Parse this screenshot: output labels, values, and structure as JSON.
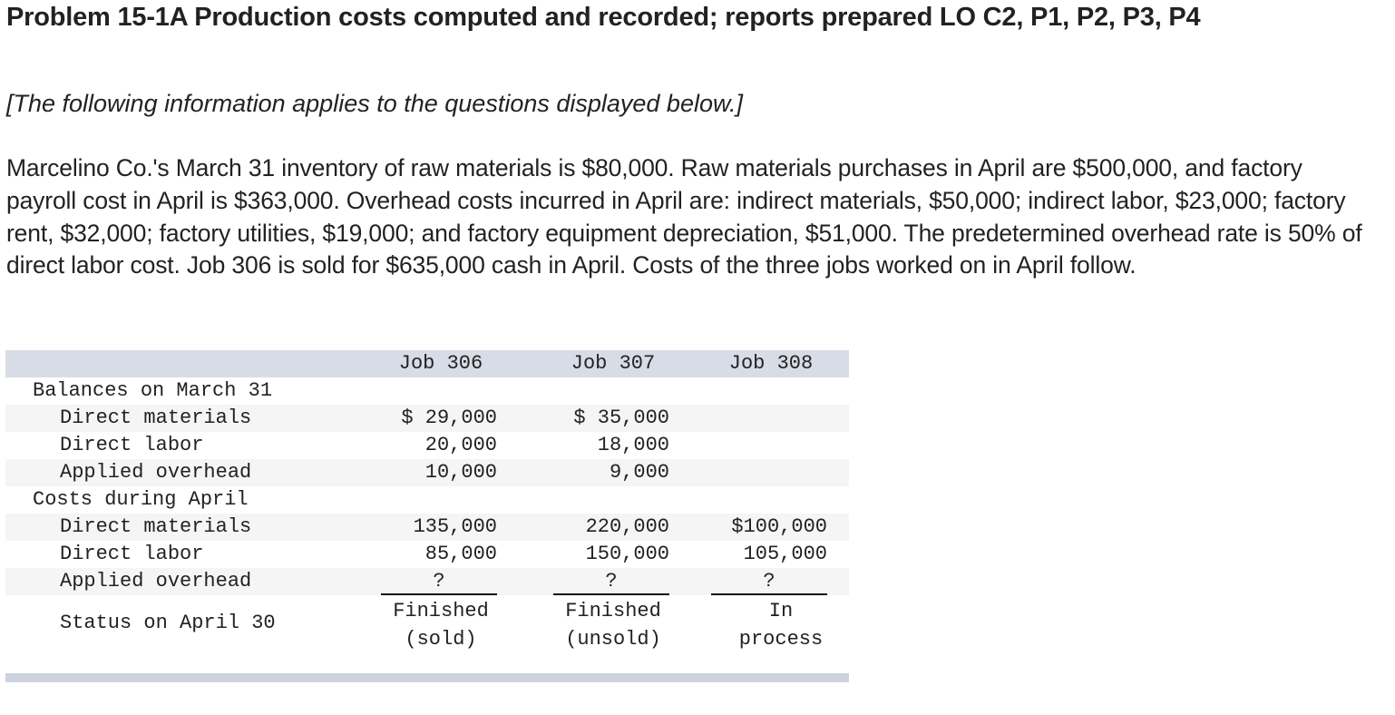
{
  "header": {
    "title": "Problem 15-1A Production costs computed and recorded; reports prepared LO C2, P1, P2, P3, P4",
    "intro": "[The following information applies to the questions displayed below.]"
  },
  "problem": {
    "paragraph": "Marcelino Co.'s March 31 inventory of raw materials is $80,000. Raw materials purchases in April are $500,000, and factory payroll cost in April is $363,000. Overhead costs incurred in April are: indirect materials, $50,000; indirect labor, $23,000; factory rent, $32,000; factory utilities, $19,000; and factory equipment depreciation, $51,000. The predetermined overhead rate is 50% of direct labor cost. Job 306 is sold for $635,000 cash in April. Costs of the three jobs worked on in April follow."
  },
  "table": {
    "columns": [
      "Job 306",
      "Job 307",
      "Job 308"
    ],
    "sections": [
      {
        "label": "Balances on March 31",
        "rows": [
          {
            "label": "Direct materials",
            "values": [
              "$ 29,000",
              "$ 35,000",
              ""
            ]
          },
          {
            "label": "Direct labor",
            "values": [
              "20,000",
              "18,000",
              ""
            ]
          },
          {
            "label": "Applied overhead",
            "values": [
              "10,000",
              "9,000",
              ""
            ]
          }
        ]
      },
      {
        "label": "Costs during April",
        "rows": [
          {
            "label": "Direct materials",
            "values": [
              "135,000",
              "220,000",
              "$100,000"
            ]
          },
          {
            "label": "Direct labor",
            "values": [
              "85,000",
              "150,000",
              "105,000"
            ]
          },
          {
            "label": "Applied overhead",
            "values": [
              "?",
              "?",
              "?"
            ]
          }
        ]
      }
    ],
    "status": {
      "label": "Status on April 30",
      "values": [
        "Finished\n(sold)",
        "Finished\n(unsold)",
        "In\nprocess"
      ]
    }
  },
  "colors": {
    "text": "#222222",
    "header_bar": "#d8dce6",
    "stripe": "#f5f5f5",
    "footer_bar": "#cdd3de"
  }
}
